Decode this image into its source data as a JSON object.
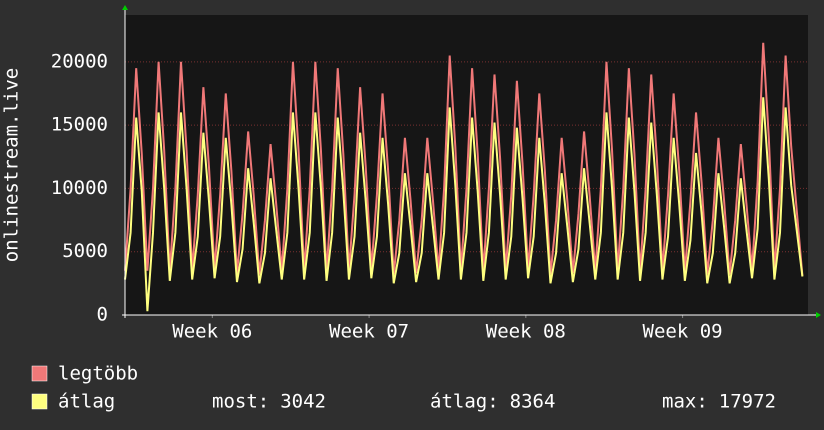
{
  "chart_data": {
    "type": "line",
    "y_label": "onlinestream.live",
    "x": [
      0,
      0.25,
      0.5,
      0.75,
      1,
      1.25,
      1.5,
      1.75,
      2,
      2.25,
      2.5,
      2.75,
      3,
      3.25,
      3.5,
      3.75,
      4,
      4.25,
      4.5,
      4.75,
      5,
      5.25,
      5.5,
      5.75,
      6,
      6.25,
      6.5,
      6.75,
      7,
      7.25,
      7.5,
      7.75,
      8,
      8.25,
      8.5,
      8.75,
      9,
      9.25,
      9.5,
      9.75,
      10,
      10.25,
      10.5,
      10.75,
      11,
      11.25,
      11.5,
      11.75,
      12,
      12.25,
      12.5,
      12.75,
      13,
      13.25,
      13.5,
      13.75,
      14,
      14.25,
      14.5,
      14.75,
      15,
      15.25,
      15.5,
      15.75,
      16,
      16.25,
      16.5,
      16.75,
      17,
      17.25,
      17.5,
      17.75,
      18,
      18.25,
      18.5,
      18.75,
      19,
      19.25,
      19.5,
      19.75,
      20,
      20.25,
      20.5,
      20.75,
      21,
      21.25,
      21.5,
      21.75,
      22,
      22.25,
      22.5,
      22.75,
      23,
      23.25,
      23.5,
      23.75,
      24,
      24.25,
      24.5,
      24.75,
      25,
      25.25,
      25.5,
      25.75,
      26,
      26.25,
      26.5,
      26.75,
      27,
      27.25,
      27.5,
      27.75,
      28,
      28.25,
      28.5,
      28.75,
      29,
      29.25,
      29.5,
      29.75,
      30.25
    ],
    "series": [
      {
        "name": "legtöbb",
        "color": "#f07878",
        "values": [
          3500,
          10000,
          19500,
          12700,
          3500,
          10000,
          20000,
          13000,
          3400,
          10000,
          20000,
          13000,
          3500,
          9500,
          18000,
          11700,
          3600,
          9500,
          17500,
          11400,
          3300,
          8000,
          14500,
          9400,
          3200,
          7500,
          13500,
          8800,
          3500,
          10000,
          20000,
          13000,
          3500,
          10000,
          20000,
          13000,
          3400,
          10000,
          19500,
          12700,
          3500,
          9500,
          18000,
          11700,
          3600,
          9500,
          17500,
          11400,
          3200,
          7500,
          14000,
          9100,
          3300,
          7500,
          14000,
          9100,
          3500,
          10000,
          20500,
          13300,
          3500,
          10000,
          19500,
          12700,
          3400,
          10000,
          19000,
          12400,
          3500,
          9500,
          18500,
          12000,
          3600,
          9500,
          17500,
          11400,
          3200,
          7500,
          14000,
          9100,
          3300,
          8000,
          14500,
          9400,
          3500,
          10000,
          20000,
          13000,
          3500,
          10000,
          19500,
          12700,
          3400,
          10000,
          19000,
          12400,
          3500,
          9500,
          17500,
          11400,
          3400,
          9000,
          16000,
          10400,
          3200,
          7500,
          14000,
          9100,
          3200,
          7500,
          13500,
          8800,
          3600,
          10500,
          21500,
          14000,
          3500,
          10000,
          20500,
          13300,
          3100
        ]
      },
      {
        "name": "átlag",
        "color": "#ffff80",
        "values": [
          2800,
          6500,
          15600,
          9750,
          300,
          6500,
          16000,
          10000,
          2700,
          6500,
          16000,
          10000,
          2800,
          6200,
          14400,
          9000,
          2900,
          6200,
          14000,
          8750,
          2600,
          5200,
          11600,
          7250,
          2500,
          4900,
          10800,
          6750,
          2800,
          6500,
          16000,
          10000,
          2800,
          6500,
          16000,
          10000,
          2700,
          6500,
          15600,
          9750,
          2800,
          6200,
          14400,
          9000,
          2900,
          6200,
          14000,
          8750,
          2500,
          4900,
          11200,
          7000,
          2600,
          4900,
          11200,
          7000,
          2800,
          6500,
          16400,
          10250,
          2800,
          6500,
          15600,
          9750,
          2700,
          6500,
          15200,
          9500,
          2800,
          6200,
          14800,
          9250,
          2900,
          6200,
          14000,
          8750,
          2500,
          4900,
          11200,
          7000,
          2600,
          5200,
          11600,
          7250,
          2800,
          6500,
          16000,
          10000,
          2800,
          6500,
          15600,
          9750,
          2700,
          6500,
          15200,
          9500,
          2800,
          6200,
          14000,
          8750,
          2700,
          5900,
          12800,
          8000,
          2500,
          4900,
          11200,
          7000,
          2500,
          4900,
          10800,
          6750,
          2900,
          6800,
          17200,
          10750,
          2800,
          6500,
          16400,
          10250,
          3042
        ]
      }
    ],
    "stats": [
      {
        "label": "most:",
        "value": 3042
      },
      {
        "label": "átlag:",
        "value": 8364
      },
      {
        "label": "max:",
        "value": 17972
      }
    ],
    "xlim": [
      0,
      30.5
    ],
    "xticks": [
      {
        "value": 3.9,
        "label": "Week 06"
      },
      {
        "value": 10.9,
        "label": "Week 07"
      },
      {
        "value": 17.9,
        "label": "Week 08"
      },
      {
        "value": 24.9,
        "label": "Week 09"
      }
    ],
    "ylim": [
      0,
      23700
    ],
    "yticks": [
      0,
      5000,
      10000,
      15000,
      20000
    ],
    "grid": true
  }
}
